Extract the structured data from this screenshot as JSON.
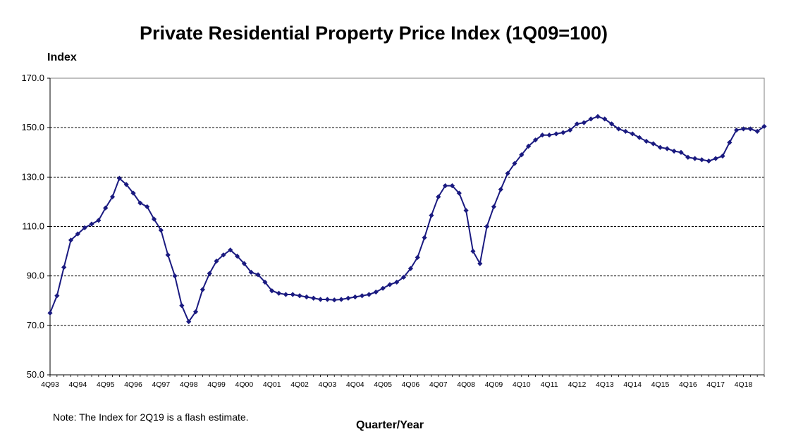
{
  "chart_data": {
    "type": "line",
    "title": "Private Residential Property Price Index (1Q09=100)",
    "ylabel": "Index",
    "xlabel": "Quarter/Year",
    "note": "Note: The Index for 2Q19 is a flash estimate.",
    "ylim": [
      50,
      170
    ],
    "yticks": [
      "50.0",
      "70.0",
      "90.0",
      "110.0",
      "130.0",
      "150.0",
      "170.0"
    ],
    "grid": "horizontal dashed",
    "legend": "none",
    "series_color": "#1a1a80",
    "x_tick_labels": [
      "4Q93",
      "4Q94",
      "4Q95",
      "4Q96",
      "4Q97",
      "4Q98",
      "4Q99",
      "4Q00",
      "4Q01",
      "4Q02",
      "4Q03",
      "4Q04",
      "4Q05",
      "4Q06",
      "4Q07",
      "4Q08",
      "4Q09",
      "4Q10",
      "4Q11",
      "4Q12",
      "4Q13",
      "4Q14",
      "4Q15",
      "4Q16",
      "4Q17",
      "4Q18"
    ],
    "x_start": "4Q93",
    "x_end": "2Q19",
    "values": [
      75.0,
      82.0,
      93.5,
      104.5,
      107.0,
      109.5,
      111.0,
      112.5,
      117.5,
      122.0,
      129.5,
      127.0,
      123.5,
      119.5,
      118.0,
      113.0,
      108.5,
      98.5,
      90.0,
      78.0,
      71.5,
      75.5,
      84.5,
      91.0,
      96.0,
      98.5,
      100.5,
      98.0,
      95.0,
      91.5,
      90.5,
      87.5,
      84.0,
      83.0,
      82.5,
      82.5,
      82.0,
      81.5,
      81.0,
      80.5,
      80.5,
      80.3,
      80.5,
      81.0,
      81.5,
      82.0,
      82.5,
      83.5,
      85.0,
      86.5,
      87.5,
      89.5,
      93.0,
      97.5,
      105.5,
      114.5,
      122.0,
      126.5,
      126.5,
      123.5,
      116.5,
      100.0,
      95.0,
      110.0,
      118.0,
      125.0,
      131.5,
      135.5,
      139.0,
      142.5,
      145.0,
      147.0,
      147.0,
      147.5,
      148.0,
      149.0,
      151.5,
      152.0,
      153.5,
      154.5,
      153.5,
      151.5,
      149.5,
      148.5,
      147.5,
      146.0,
      144.5,
      143.5,
      142.0,
      141.5,
      140.5,
      140.0,
      138.0,
      137.5,
      137.0,
      136.5,
      137.5,
      138.5,
      144.0,
      149.0,
      149.5,
      149.5,
      148.5,
      150.5
    ]
  }
}
